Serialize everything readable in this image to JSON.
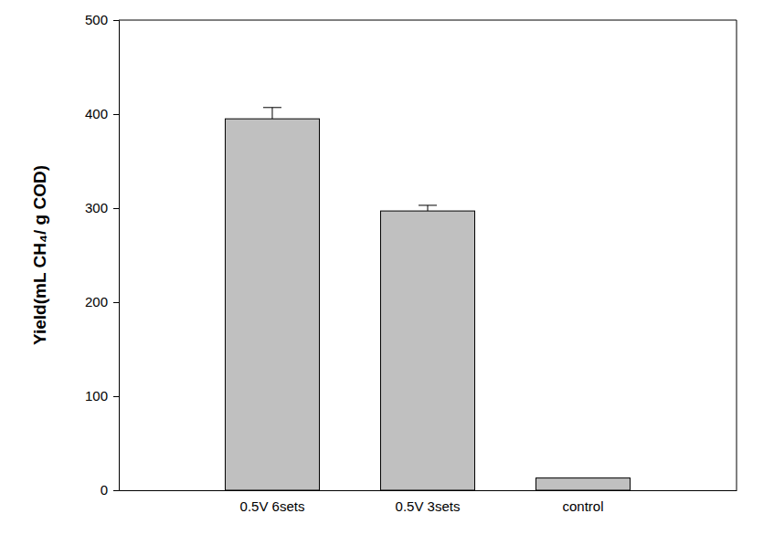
{
  "chart_data": {
    "type": "bar",
    "y_label": "Yield(mL CH₄/ g COD)",
    "categories": [
      "0.5V 6sets",
      "0.5V 3sets",
      "control"
    ],
    "values": [
      395,
      297,
      13
    ],
    "errors": [
      12,
      6,
      null
    ],
    "color": "#c0c0c0",
    "ylim": [
      0,
      500
    ],
    "yticks": [
      0,
      100,
      200,
      300,
      400,
      500
    ],
    "grid": false
  }
}
